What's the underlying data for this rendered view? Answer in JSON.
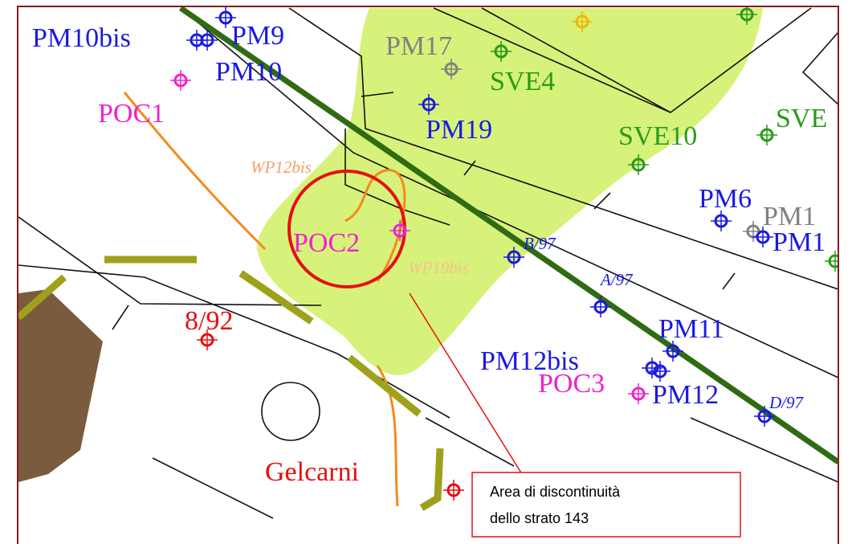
{
  "labels": [
    {
      "text": "PM10bis"
    },
    {
      "text": "PM9"
    },
    {
      "text": "PM10"
    },
    {
      "text": "POC1"
    },
    {
      "text": "PM17"
    },
    {
      "text": "SVE4"
    },
    {
      "text": "PM19"
    },
    {
      "text": "SVE10"
    },
    {
      "text": "SVE"
    },
    {
      "text": "WP12bis"
    },
    {
      "text": "POC2"
    },
    {
      "text": "WP19bis"
    },
    {
      "text": "B/97"
    },
    {
      "text": "PM6"
    },
    {
      "text": "PM1"
    },
    {
      "text": "PM1"
    },
    {
      "text": "A/97"
    },
    {
      "text": "8/92"
    },
    {
      "text": "PM11"
    },
    {
      "text": "PM12bis"
    },
    {
      "text": "POC3"
    },
    {
      "text": "PM12"
    },
    {
      "text": "D/97"
    },
    {
      "text": "Gelcarni"
    }
  ],
  "callout": {
    "lines": [
      "Area    di    discontinuità",
      "dello strato 143"
    ]
  }
}
